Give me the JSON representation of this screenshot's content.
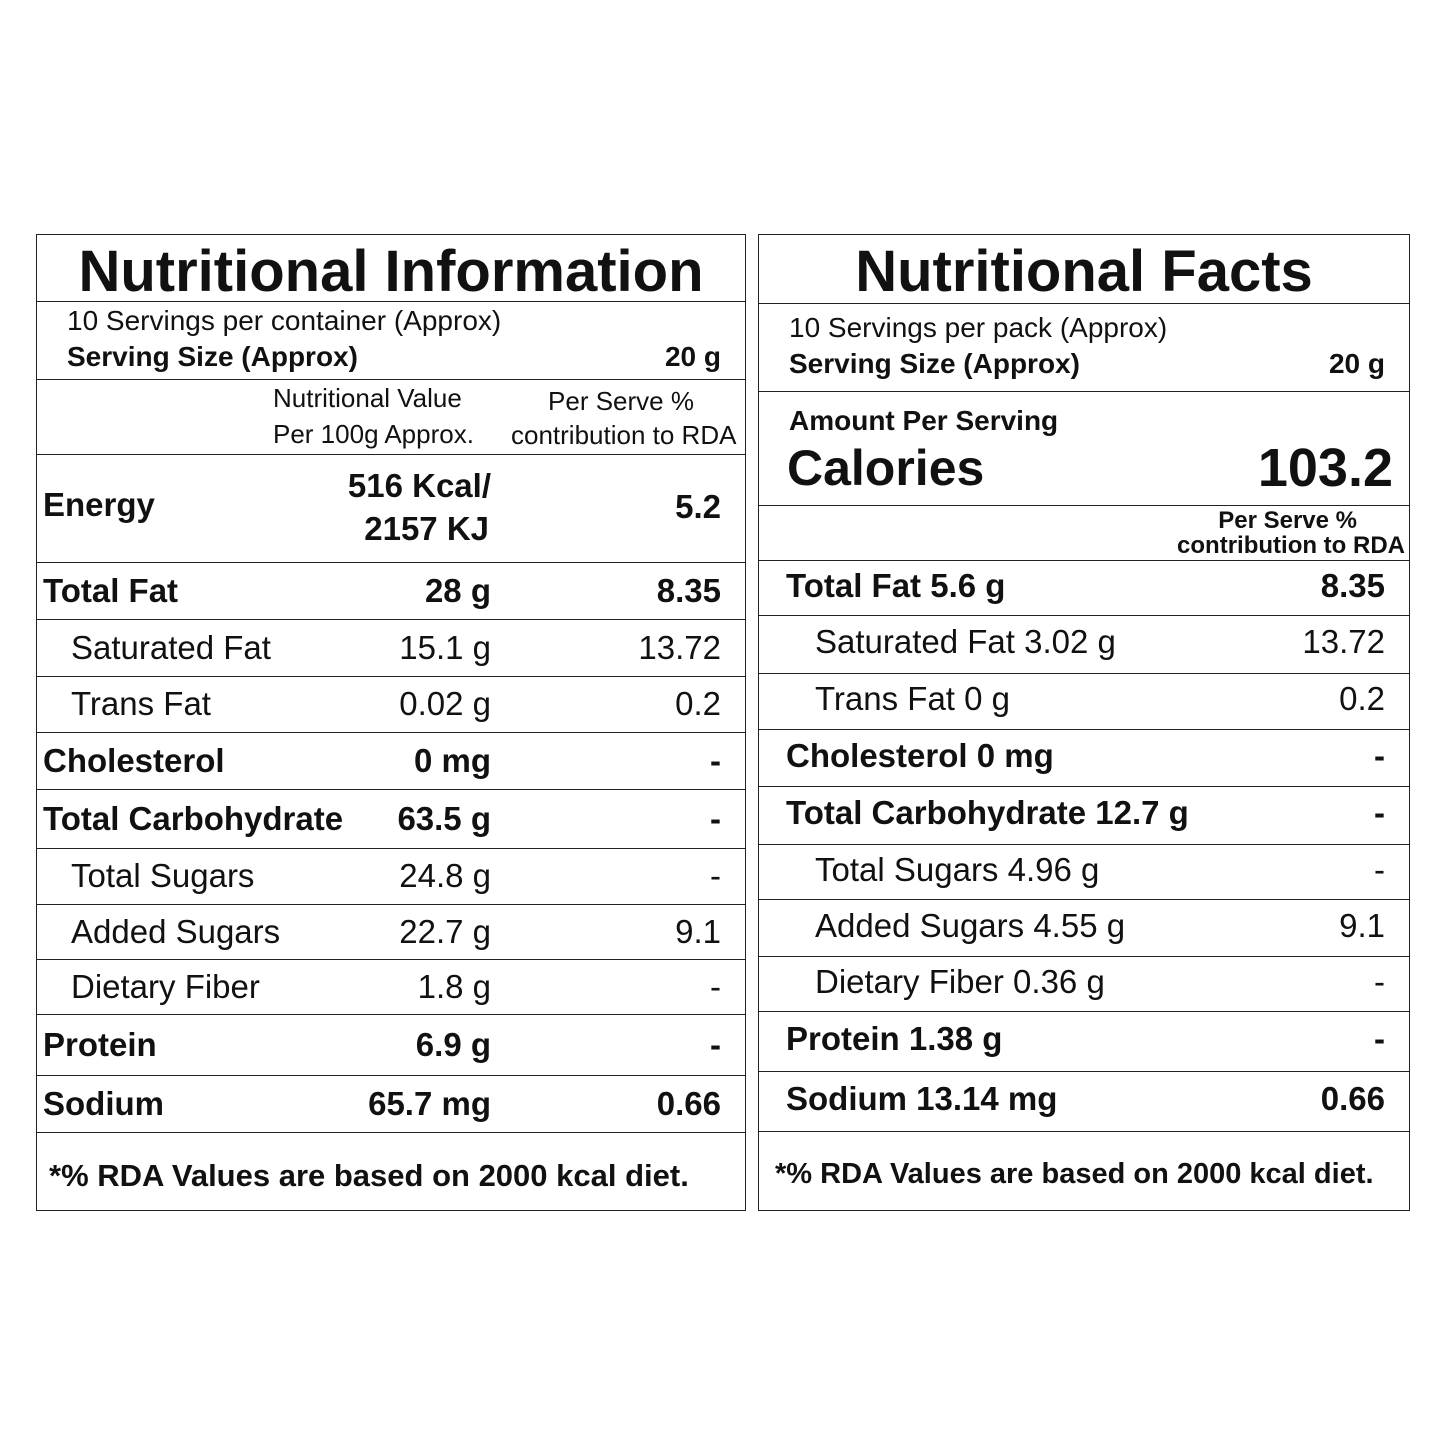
{
  "left": {
    "title": "Nutritional Information",
    "servings": "10 Servings per container (Approx)",
    "serving_size_label": "Serving Size (Approx)",
    "serving_size_value": "20 g",
    "col_value_line1": "Nutritional Value",
    "col_value_line2": "Per 100g Approx.",
    "col_rda_line1": "Per Serve %",
    "col_rda_line2": "contribution to RDA",
    "energy_label": "Energy",
    "energy_value_line1": "516 Kcal/",
    "energy_value_line2": "2157 KJ",
    "energy_rda": "5.2",
    "rows": [
      {
        "label": "Total Fat",
        "value": "28 g",
        "rda": "8.35",
        "bold": true
      },
      {
        "label": "Saturated Fat",
        "value": "15.1 g",
        "rda": "13.72",
        "bold": false
      },
      {
        "label": "Trans Fat",
        "value": "0.02 g",
        "rda": "0.2",
        "bold": false
      },
      {
        "label": "Cholesterol",
        "value": "0 mg",
        "rda": "-",
        "bold": true
      },
      {
        "label": "Total Carbohydrate",
        "value": "63.5 g",
        "rda": "-",
        "bold": true
      },
      {
        "label": "Total Sugars",
        "value": "24.8 g",
        "rda": "-",
        "bold": false
      },
      {
        "label": "Added Sugars",
        "value": "22.7 g",
        "rda": "9.1",
        "bold": false
      },
      {
        "label": "Dietary Fiber",
        "value": "1.8 g",
        "rda": "-",
        "bold": false
      },
      {
        "label": "Protein",
        "value": "6.9 g",
        "rda": "-",
        "bold": true
      },
      {
        "label": "Sodium",
        "value": "65.7 mg",
        "rda": "0.66",
        "bold": true
      }
    ],
    "footer": "*% RDA Values are based on 2000 kcal diet."
  },
  "right": {
    "title": "Nutritional Facts",
    "servings": "10 Servings per pack (Approx)",
    "serving_size_label": "Serving Size (Approx)",
    "serving_size_value": "20 g",
    "amount_per_serving": "Amount Per Serving",
    "calories_label": "Calories",
    "calories_value": "103.2",
    "col_rda_line1": "Per Serve %",
    "col_rda_line2": "contribution to RDA",
    "rows": [
      {
        "label": "Total Fat 5.6 g",
        "rda": "8.35",
        "bold": true
      },
      {
        "label": "Saturated Fat 3.02 g",
        "rda": "13.72",
        "bold": false
      },
      {
        "label": "Trans Fat 0 g",
        "rda": "0.2",
        "bold": false
      },
      {
        "label": "Cholesterol 0 mg",
        "rda": "-",
        "bold": true
      },
      {
        "label": "Total Carbohydrate 12.7 g",
        "rda": "-",
        "bold": true
      },
      {
        "label": "Total Sugars 4.96 g",
        "rda": "-",
        "bold": false
      },
      {
        "label": "Added Sugars 4.55 g",
        "rda": "9.1",
        "bold": false
      },
      {
        "label": "Dietary Fiber 0.36 g",
        "rda": "-",
        "bold": false
      },
      {
        "label": "Protein 1.38 g",
        "rda": "-",
        "bold": true
      },
      {
        "label": "Sodium 13.14 mg",
        "rda": "0.66",
        "bold": true
      }
    ],
    "footer": "*% RDA Values are based on 2000 kcal diet."
  }
}
